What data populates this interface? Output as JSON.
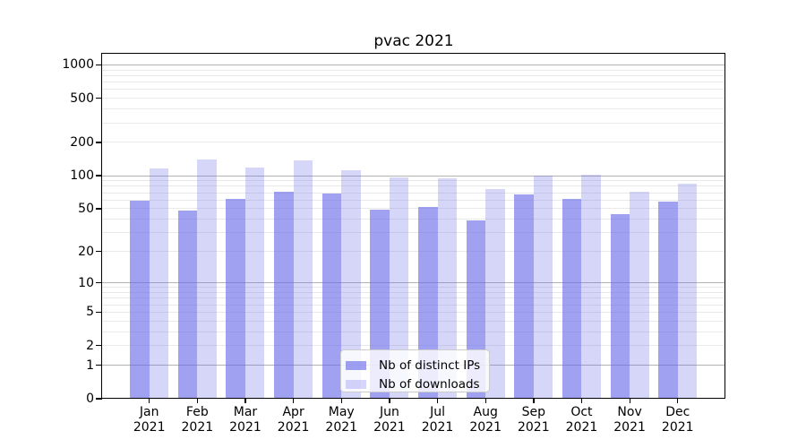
{
  "title": "pvac 2021",
  "chart_data": {
    "type": "bar",
    "title": "pvac 2021",
    "y_scale": "log1p (value plotted as log10(1+v), custom ticks)",
    "categories": [
      "Jan 2021",
      "Feb 2021",
      "Mar 2021",
      "Apr 2021",
      "May 2021",
      "Jun 2021",
      "Jul 2021",
      "Aug 2021",
      "Sep 2021",
      "Oct 2021",
      "Nov 2021",
      "Dec 2021"
    ],
    "series": [
      {
        "name": "Nb of distinct IPs",
        "color": "rgba(104,104,232,0.62)",
        "values": [
          59,
          48,
          62,
          72,
          69,
          49,
          52,
          39,
          68,
          61,
          45,
          58
        ]
      },
      {
        "name": "Nb of downloads",
        "color": "rgba(104,104,232,0.27)",
        "values": [
          117,
          139,
          118,
          137,
          113,
          97,
          95,
          75,
          100,
          103,
          71,
          84
        ]
      }
    ],
    "yticks": [
      0,
      1,
      2,
      5,
      10,
      20,
      50,
      100,
      200,
      500,
      1000
    ],
    "minor_gridlines": [
      2,
      3,
      4,
      5,
      6,
      7,
      8,
      9,
      20,
      30,
      40,
      50,
      60,
      70,
      80,
      90,
      200,
      300,
      400,
      500,
      600,
      700,
      800,
      900
    ],
    "major_gridlines": [
      1,
      10,
      100,
      1000
    ],
    "xlabel": "",
    "ylabel": "",
    "ylim": [
      0,
      1200
    ],
    "grid": "on (major + minor, drawn beneath translucent bars)",
    "legend_position": "lower center"
  },
  "colors": {
    "bar_base": "#6868e8",
    "major_grid": "#b3b3b3",
    "minor_grid": "#e9e9e9",
    "axis": "#000000",
    "text": "#000000",
    "legend_border": "#cccccc",
    "legend_bg": "rgba(255,255,255,0.8)"
  }
}
